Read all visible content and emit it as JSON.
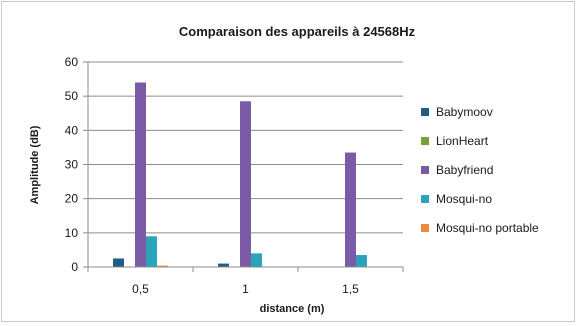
{
  "chart_data": {
    "type": "bar",
    "title": "Comparaison des appareils à 24568Hz",
    "xlabel": "distance (m)",
    "ylabel": "Amplitude (dB)",
    "categories": [
      "0,5",
      "1",
      "1,5"
    ],
    "ylim": [
      0,
      60
    ],
    "yticks": [
      0,
      10,
      20,
      30,
      40,
      50,
      60
    ],
    "grid": true,
    "legend_position": "right",
    "series": [
      {
        "name": "Babymoov",
        "color": "#1f5f86",
        "values": [
          2.5,
          1,
          0
        ]
      },
      {
        "name": "LionHeart",
        "color": "#77a03b",
        "values": [
          0,
          0,
          0
        ]
      },
      {
        "name": "Babyfriend",
        "color": "#7b5aa6",
        "values": [
          54,
          48.5,
          33.5
        ]
      },
      {
        "name": "Mosqui-no",
        "color": "#2aa4bd",
        "values": [
          9,
          4,
          3.5
        ]
      },
      {
        "name": "Mosqui-no portable",
        "color": "#ed8a3c",
        "values": [
          0.4,
          0,
          0
        ]
      }
    ]
  }
}
